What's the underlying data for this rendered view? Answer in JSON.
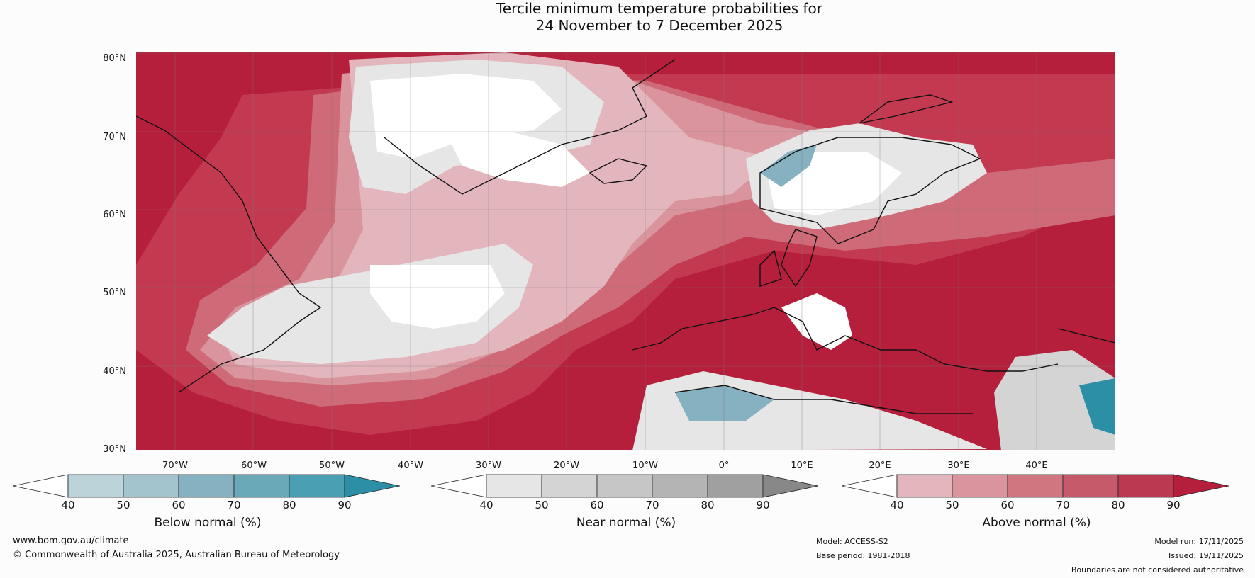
{
  "title": {
    "line1": "Tercile minimum temperature probabilities for",
    "line2": "24 November to 7 December 2025"
  },
  "map": {
    "lat_labels": [
      "80°N",
      "70°N",
      "60°N",
      "50°N",
      "40°N",
      "30°N"
    ],
    "lon_labels": [
      "70°W",
      "60°W",
      "50°W",
      "40°W",
      "30°W",
      "20°W",
      "10°W",
      "0°",
      "10°E",
      "20°E",
      "30°E",
      "40°E"
    ],
    "colors": {
      "above_90": "#b51f3b",
      "above_80": "#c33a50",
      "above_70": "#cf6b78",
      "above_60": "#d9949d",
      "above_50": "#e2b6bc",
      "white": "#ffffff",
      "near_40": "#e6e6e6",
      "near_50": "#d4d4d4",
      "near_60": "#c6c6c6",
      "below_40": "#bcd3da",
      "below_60": "#86b1c0",
      "below_90": "#2c8fa6",
      "coast": "#111111"
    }
  },
  "legends": [
    {
      "name": "below",
      "label": "Below normal (%)",
      "ticks": [
        "40",
        "50",
        "60",
        "70",
        "80",
        "90"
      ],
      "colors": [
        "#bcd3da",
        "#a4c4cd",
        "#86b1c0",
        "#6aa9b7",
        "#4b9fb2",
        "#2c8fa6"
      ]
    },
    {
      "name": "near",
      "label": "Near normal (%)",
      "ticks": [
        "40",
        "50",
        "60",
        "70",
        "80",
        "90"
      ],
      "colors": [
        "#e6e6e6",
        "#d4d4d4",
        "#c6c6c6",
        "#b4b4b4",
        "#a0a0a0",
        "#888888"
      ]
    },
    {
      "name": "above",
      "label": "Above normal (%)",
      "ticks": [
        "40",
        "50",
        "60",
        "70",
        "80",
        "90"
      ],
      "colors": [
        "#e2b6bc",
        "#d9949d",
        "#cf7680",
        "#c65a6a",
        "#bb3a52",
        "#b51f3b"
      ]
    }
  ],
  "footer": {
    "website": "www.bom.gov.au/climate",
    "copyright": "© Commonwealth of Australia 2025, Australian Bureau of Meteorology",
    "model": "Model: ACCESS-S2",
    "base_period": "Base period: 1981-2018",
    "model_run": "Model run: 17/11/2025",
    "issued": "Issued: 19/11/2025",
    "disclaimer": "Boundaries are not considered authoritative"
  }
}
